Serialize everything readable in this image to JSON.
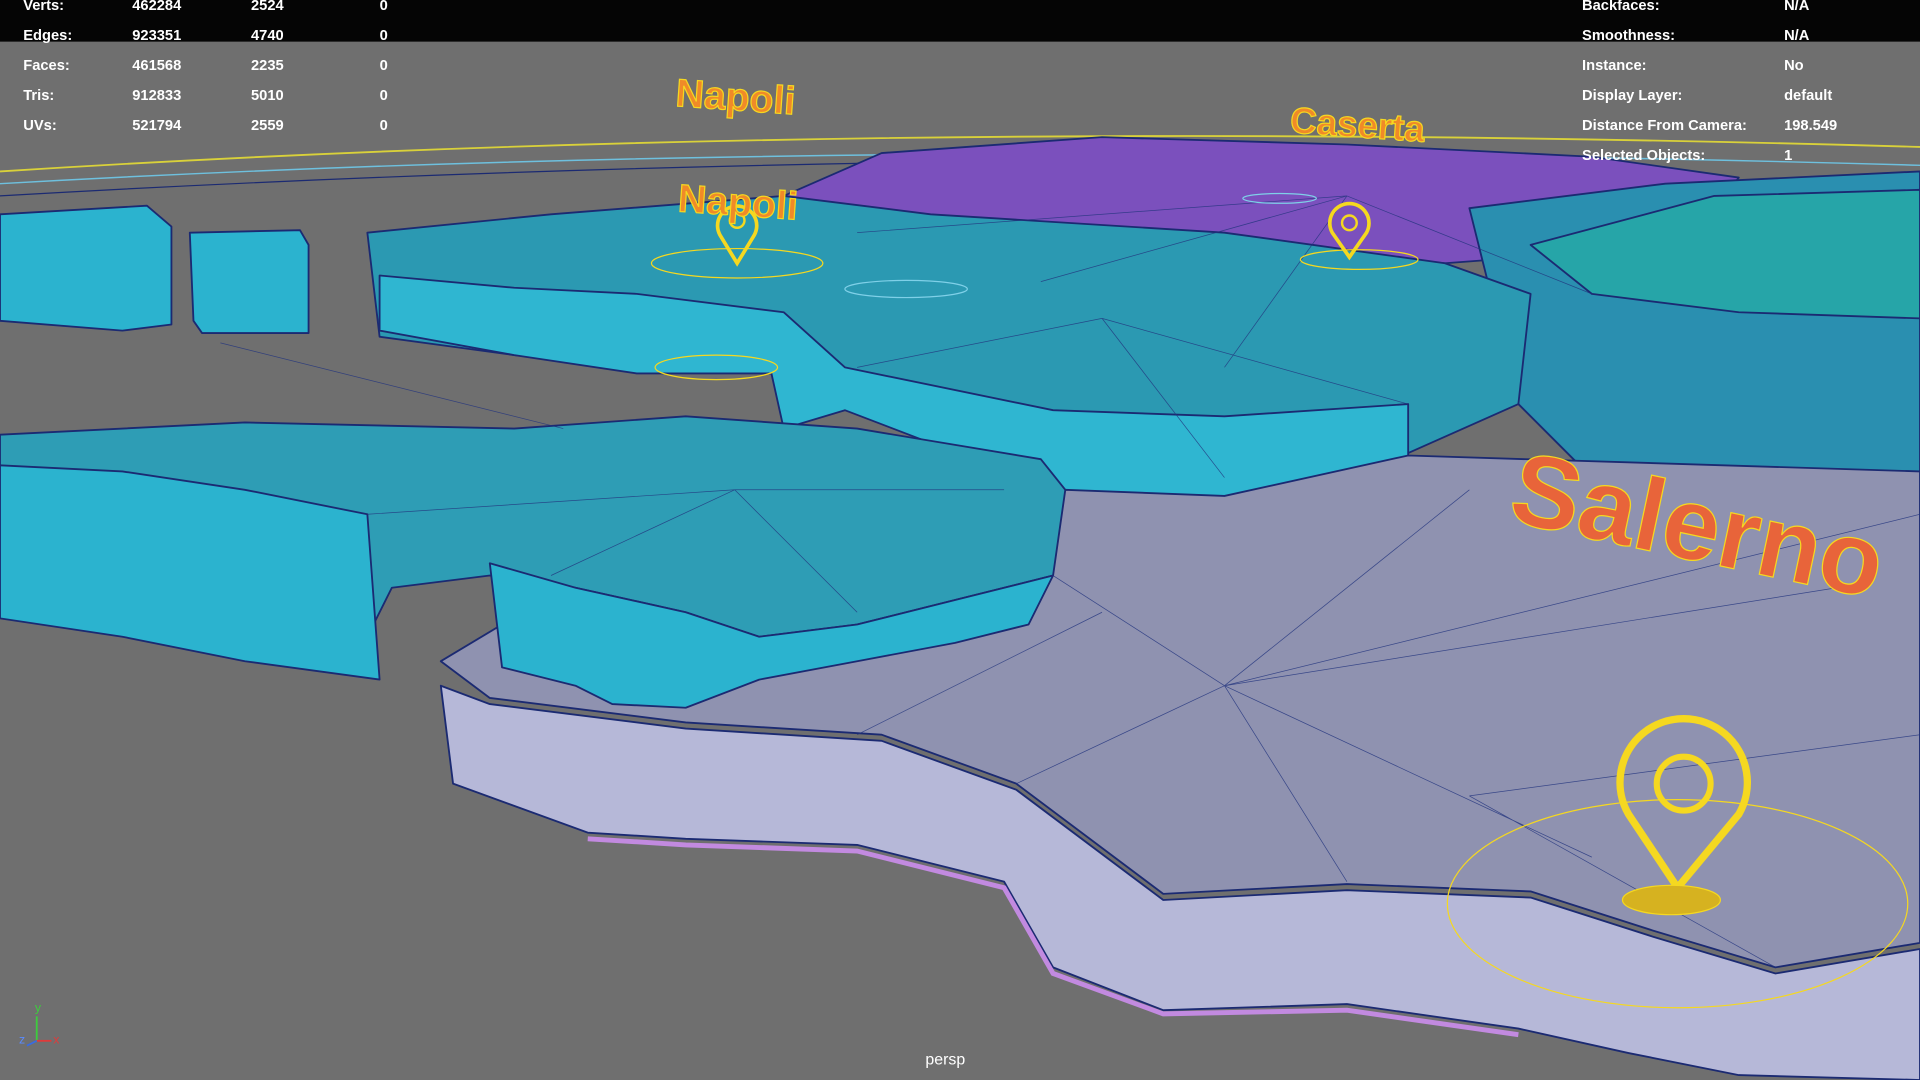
{
  "hud_left": {
    "rows": [
      {
        "label": "Verts:",
        "values": [
          462284,
          2524,
          0
        ]
      },
      {
        "label": "Edges:",
        "values": [
          923351,
          4740,
          0
        ]
      },
      {
        "label": "Faces:",
        "values": [
          461568,
          2235,
          0
        ]
      },
      {
        "label": "Tris:",
        "values": [
          912833,
          5010,
          0
        ]
      },
      {
        "label": "UVs:",
        "values": [
          521794,
          2559,
          0
        ]
      }
    ]
  },
  "hud_right": {
    "rows": [
      {
        "label": "Backfaces:",
        "value": "N/A"
      },
      {
        "label": "Smoothness:",
        "value": "N/A"
      },
      {
        "label": "Instance:",
        "value": "No"
      },
      {
        "label": "Display Layer:",
        "value": "default"
      },
      {
        "label": "Distance From Camera:",
        "value": 198.549
      },
      {
        "label": "Selected Objects:",
        "value": 1
      }
    ]
  },
  "scene_labels": [
    "Napoli",
    "Napoli",
    "Caserta",
    "Salerno"
  ],
  "camera": "persp",
  "axis": [
    "y",
    "z",
    "x"
  ]
}
